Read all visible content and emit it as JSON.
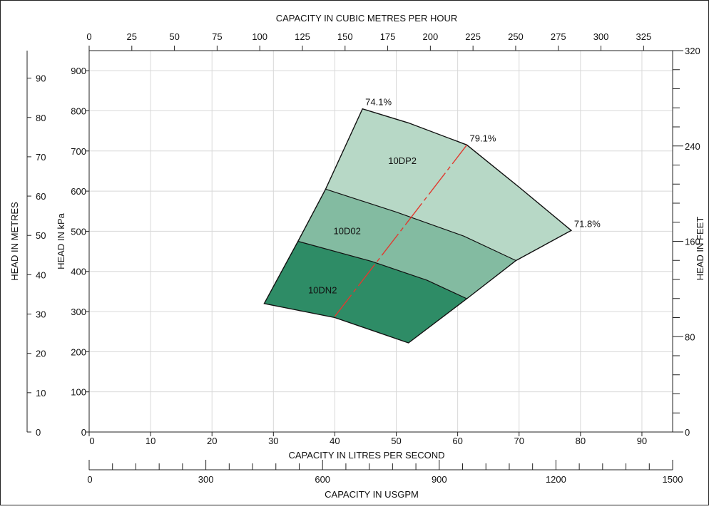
{
  "chart_data": {
    "type": "area",
    "title": "",
    "axes": {
      "x_bottom": {
        "label": "CAPACITY IN LITRES PER SECOND",
        "range": [
          0,
          95
        ],
        "ticks": [
          0,
          10,
          20,
          30,
          40,
          50,
          60,
          70,
          80,
          90
        ]
      },
      "x_top": {
        "label": "CAPACITY IN CUBIC METRES PER HOUR",
        "range": [
          0,
          342
        ],
        "ticks": [
          0,
          25,
          50,
          75,
          100,
          125,
          150,
          175,
          200,
          225,
          250,
          275,
          300,
          325
        ]
      },
      "x_usgpm": {
        "label": "CAPACITY IN USGPM",
        "range": [
          0,
          1500
        ],
        "ticks": [
          0,
          300,
          600,
          900,
          1200,
          1500
        ]
      },
      "y_kpa": {
        "label": "HEAD IN kPa",
        "range": [
          0,
          950
        ],
        "ticks": [
          0,
          100,
          200,
          300,
          400,
          500,
          600,
          700,
          800,
          900
        ]
      },
      "y_metres": {
        "label": "HEAD IN METRES",
        "range": [
          0,
          97
        ],
        "ticks": [
          0,
          10,
          20,
          30,
          40,
          50,
          60,
          70,
          80,
          90
        ]
      },
      "y_feet": {
        "label": "HEAD IN FEET",
        "range": [
          0,
          320
        ],
        "ticks": [
          0,
          80,
          160,
          240,
          320
        ]
      }
    },
    "grid": true,
    "bands": [
      {
        "name": "10DP2",
        "color": "#b7d8c6",
        "top": [
          [
            44.5,
            805
          ],
          [
            52,
            770
          ],
          [
            61.5,
            715
          ]
        ],
        "bottom": [
          [
            38.5,
            605
          ],
          [
            50,
            548
          ],
          [
            61,
            488
          ],
          [
            69.5,
            427
          ]
        ],
        "right": [
          [
            61.5,
            715
          ],
          [
            70,
            610
          ],
          [
            78.5,
            502
          ]
        ]
      },
      {
        "name": "10D02",
        "color": "#83bba1",
        "top": [
          [
            38.5,
            605
          ],
          [
            50,
            548
          ],
          [
            61,
            488
          ],
          [
            69.5,
            427
          ]
        ],
        "bottom": [
          [
            34,
            475
          ],
          [
            46,
            425
          ],
          [
            55,
            378
          ],
          [
            61.5,
            332
          ]
        ],
        "right": [
          [
            69.5,
            427
          ],
          [
            61.5,
            332
          ]
        ]
      },
      {
        "name": "10DN2",
        "color": "#2e8c66",
        "top": [
          [
            34,
            475
          ],
          [
            46,
            425
          ],
          [
            55,
            378
          ],
          [
            61.5,
            332
          ]
        ],
        "bottom": [
          [
            28.5,
            320
          ],
          [
            40,
            285
          ],
          [
            52,
            222
          ]
        ],
        "right": [
          [
            61.5,
            332
          ],
          [
            52,
            222
          ]
        ]
      }
    ],
    "band_outline": [
      [
        28.5,
        320
      ],
      [
        34,
        475
      ],
      [
        38.5,
        605
      ],
      [
        44.5,
        805
      ],
      [
        52,
        770
      ],
      [
        61.5,
        715
      ],
      [
        70,
        610
      ],
      [
        78.5,
        502
      ],
      [
        69.5,
        427
      ],
      [
        61.5,
        332
      ],
      [
        52,
        222
      ],
      [
        40,
        285
      ]
    ],
    "efficiency_line": {
      "points": [
        [
          40,
          288
        ],
        [
          61.5,
          715
        ]
      ],
      "color": "#e03a2f",
      "dashed": true
    },
    "annotations": [
      {
        "text": "74.1%",
        "x": 44.5,
        "y": 805
      },
      {
        "text": "79.1%",
        "x": 61.5,
        "y": 715
      },
      {
        "text": "71.8%",
        "x": 78.5,
        "y": 502
      }
    ],
    "band_labels": [
      {
        "text": "10DP2",
        "x": 51,
        "y": 668
      },
      {
        "text": "10D02",
        "x": 42,
        "y": 493
      },
      {
        "text": "10DN2",
        "x": 38,
        "y": 345
      }
    ]
  }
}
